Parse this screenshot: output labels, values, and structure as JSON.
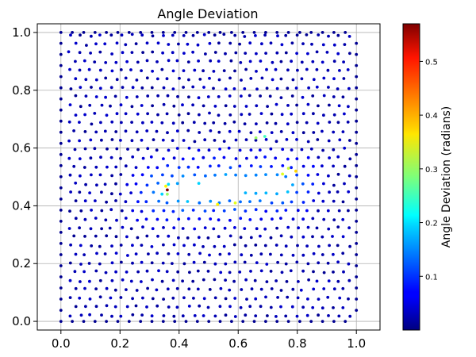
{
  "chart_data": {
    "type": "scatter",
    "title": "Angle Deviation",
    "xlabel": "",
    "ylabel": "",
    "xlim": [
      -0.08,
      1.08
    ],
    "ylim": [
      -0.03,
      1.03
    ],
    "x_ticks": [
      0.0,
      0.2,
      0.4,
      0.6,
      0.8,
      1.0
    ],
    "x_tick_labels": [
      "0.0",
      "0.2",
      "0.4",
      "0.6",
      "0.8",
      "1.0"
    ],
    "y_ticks": [
      0.0,
      0.2,
      0.4,
      0.6,
      0.8,
      1.0
    ],
    "y_tick_labels": [
      "0.0",
      "0.2",
      "0.4",
      "0.6",
      "0.8",
      "1.0"
    ],
    "grid": true,
    "colormap": "jet",
    "colorbar": {
      "label": "Angle Deviation (radians)",
      "range": [
        0.0,
        0.57
      ],
      "ticks": [
        0.1,
        0.2,
        0.3,
        0.4,
        0.5
      ],
      "tick_labels": [
        "0.1",
        "0.2",
        "0.3",
        "0.4",
        "0.5"
      ]
    },
    "hole": {
      "shape": "airfoil",
      "leading_edge": [
        0.35,
        0.45
      ],
      "trailing_edge": [
        0.76,
        0.47
      ],
      "max_thickness": 0.1
    },
    "grid_spacing": 0.035,
    "points": [
      [
        0.355,
        0.468,
        0.36
      ],
      [
        0.36,
        0.455,
        0.57
      ],
      [
        0.36,
        0.44,
        0.3
      ],
      [
        0.53,
        0.405,
        0.36
      ],
      [
        0.59,
        0.41,
        0.34
      ],
      [
        0.75,
        0.51,
        0.34
      ],
      [
        0.77,
        0.53,
        0.33
      ],
      [
        0.795,
        0.52,
        0.38
      ],
      [
        0.66,
        0.635,
        0.3
      ],
      [
        0.69,
        0.64,
        0.25
      ]
    ]
  }
}
